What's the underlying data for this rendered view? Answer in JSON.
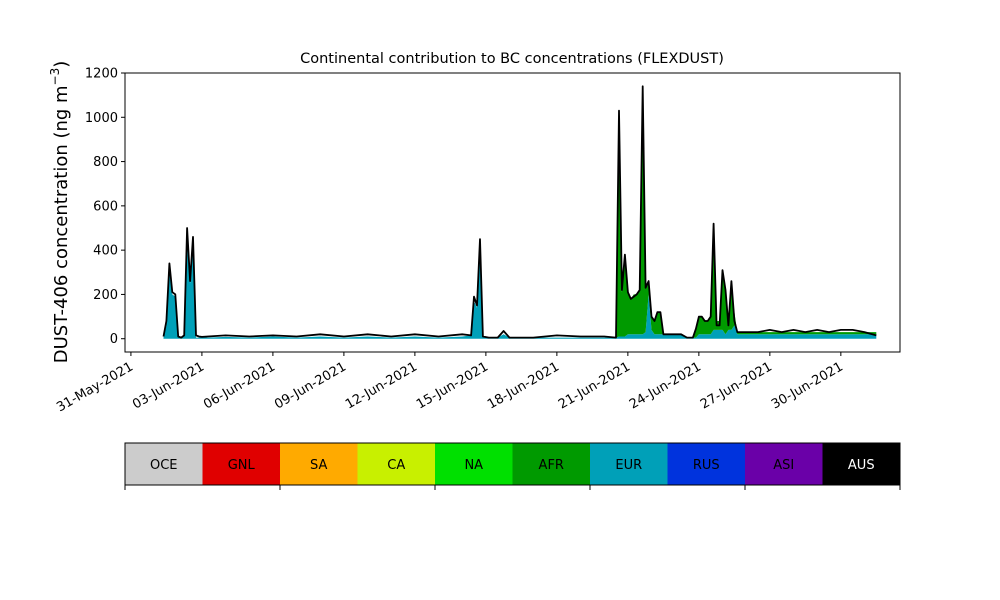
{
  "chart_data": {
    "type": "area",
    "title": "Continental contribution to BC concentrations (FLEXDUST)",
    "ylabel_main": "DUST-406 concentration (ng m",
    "ylabel_exp": "−3",
    "ylabel_close": ")",
    "xlabel": "",
    "ylim": [
      -60,
      1200
    ],
    "yticks": [
      0,
      200,
      400,
      600,
      800,
      1000,
      1200
    ],
    "xlim": [
      "2021-05-30T18:00",
      "2021-07-02T12:00"
    ],
    "xticks": [
      "31-May-2021",
      "03-Jun-2021",
      "06-Jun-2021",
      "09-Jun-2021",
      "12-Jun-2021",
      "15-Jun-2021",
      "18-Jun-2021",
      "21-Jun-2021",
      "24-Jun-2021",
      "27-Jun-2021",
      "30-Jun-2021"
    ],
    "stack_order": [
      "EUR",
      "AFR",
      "NA",
      "CA",
      "RUS",
      "ASI"
    ],
    "total_line_color": "#000000",
    "x": [
      "2021-06-01T09:00",
      "2021-06-01T12:00",
      "2021-06-01T15:00",
      "2021-06-01T18:00",
      "2021-06-01T21:00",
      "2021-06-02T00:00",
      "2021-06-02T03:00",
      "2021-06-02T06:00",
      "2021-06-02T09:00",
      "2021-06-02T12:00",
      "2021-06-02T15:00",
      "2021-06-02T18:00",
      "2021-06-02T21:00",
      "2021-06-03T00:00",
      "2021-06-03T06:00",
      "2021-06-04T00:00",
      "2021-06-05T00:00",
      "2021-06-06T00:00",
      "2021-06-07T00:00",
      "2021-06-08T00:00",
      "2021-06-09T00:00",
      "2021-06-10T00:00",
      "2021-06-11T00:00",
      "2021-06-12T00:00",
      "2021-06-13T00:00",
      "2021-06-14T00:00",
      "2021-06-14T09:00",
      "2021-06-14T12:00",
      "2021-06-14T15:00",
      "2021-06-14T18:00",
      "2021-06-14T21:00",
      "2021-06-15T03:00",
      "2021-06-15T12:00",
      "2021-06-15T18:00",
      "2021-06-16T00:00",
      "2021-06-16T12:00",
      "2021-06-17T00:00",
      "2021-06-18T00:00",
      "2021-06-19T00:00",
      "2021-06-20T00:00",
      "2021-06-20T12:00",
      "2021-06-20T15:00",
      "2021-06-20T18:00",
      "2021-06-20T21:00",
      "2021-06-21T00:00",
      "2021-06-21T03:00",
      "2021-06-21T06:00",
      "2021-06-21T09:00",
      "2021-06-21T12:00",
      "2021-06-21T15:00",
      "2021-06-21T18:00",
      "2021-06-21T21:00",
      "2021-06-22T00:00",
      "2021-06-22T03:00",
      "2021-06-22T06:00",
      "2021-06-22T09:00",
      "2021-06-22T12:00",
      "2021-06-22T15:00",
      "2021-06-22T18:00",
      "2021-06-22T21:00",
      "2021-06-23T06:00",
      "2021-06-23T12:00",
      "2021-06-23T18:00",
      "2021-06-23T21:00",
      "2021-06-24T00:00",
      "2021-06-24T03:00",
      "2021-06-24T06:00",
      "2021-06-24T09:00",
      "2021-06-24T12:00",
      "2021-06-24T15:00",
      "2021-06-24T18:00",
      "2021-06-24T21:00",
      "2021-06-25T00:00",
      "2021-06-25T03:00",
      "2021-06-25T06:00",
      "2021-06-25T09:00",
      "2021-06-25T12:00",
      "2021-06-25T15:00",
      "2021-06-25T18:00",
      "2021-06-25T21:00",
      "2021-06-26T00:00",
      "2021-06-26T03:00",
      "2021-06-26T06:00",
      "2021-06-26T12:00",
      "2021-06-27T00:00",
      "2021-06-27T12:00",
      "2021-06-28T00:00",
      "2021-06-28T12:00",
      "2021-06-29T00:00",
      "2021-06-29T12:00",
      "2021-06-30T00:00",
      "2021-06-30T12:00",
      "2021-07-01T00:00",
      "2021-07-01T12:00"
    ],
    "series": [
      {
        "name": "EUR",
        "color": "#00a0b8",
        "values": [
          5,
          60,
          300,
          200,
          190,
          10,
          5,
          15,
          430,
          250,
          440,
          5,
          5,
          8,
          5,
          8,
          5,
          10,
          5,
          10,
          5,
          10,
          5,
          10,
          5,
          10,
          15,
          170,
          140,
          420,
          10,
          5,
          5,
          20,
          5,
          5,
          5,
          5,
          5,
          5,
          5,
          10,
          10,
          10,
          20,
          20,
          20,
          20,
          20,
          20,
          30,
          200,
          40,
          20,
          20,
          20,
          20,
          20,
          20,
          20,
          20,
          5,
          5,
          5,
          20,
          20,
          20,
          20,
          20,
          40,
          40,
          40,
          40,
          20,
          40,
          40,
          60,
          20,
          20,
          20,
          20,
          20,
          20,
          20,
          20,
          20,
          20,
          20,
          20,
          20,
          20,
          20,
          20,
          20
        ]
      },
      {
        "name": "AFR",
        "color": "#009a00",
        "values": [
          0,
          0,
          0,
          0,
          0,
          0,
          0,
          0,
          0,
          0,
          0,
          0,
          0,
          0,
          0,
          0,
          0,
          0,
          0,
          0,
          0,
          0,
          0,
          0,
          0,
          0,
          0,
          0,
          0,
          0,
          0,
          0,
          0,
          0,
          0,
          0,
          0,
          0,
          0,
          0,
          0,
          1000,
          200,
          360,
          200,
          160,
          180,
          180,
          200,
          1080,
          200,
          60,
          60,
          60,
          100,
          100,
          0,
          0,
          0,
          0,
          0,
          0,
          0,
          30,
          80,
          80,
          60,
          60,
          80,
          440,
          40,
          40,
          260,
          200,
          40,
          200,
          60,
          10,
          10,
          10,
          10,
          10,
          10,
          10,
          10,
          10,
          10,
          10,
          10,
          10,
          10,
          10,
          10,
          10
        ]
      },
      {
        "name": "NA",
        "color": "#00e000",
        "values": [
          0,
          0,
          0,
          0,
          0,
          0,
          0,
          0,
          0,
          0,
          0,
          0,
          0,
          0,
          0,
          0,
          0,
          0,
          0,
          0,
          0,
          0,
          0,
          0,
          0,
          0,
          0,
          0,
          0,
          0,
          0,
          0,
          0,
          0,
          0,
          0,
          0,
          0,
          0,
          0,
          0,
          0,
          0,
          0,
          0,
          0,
          0,
          0,
          0,
          0,
          0,
          0,
          0,
          0,
          0,
          0,
          0,
          0,
          0,
          0,
          0,
          0,
          0,
          0,
          0,
          0,
          0,
          0,
          0,
          0,
          0,
          0,
          0,
          0,
          0,
          0,
          0,
          0,
          0,
          0,
          0,
          0,
          0,
          0,
          0,
          0,
          0,
          0,
          0,
          0,
          0,
          0,
          0,
          0
        ]
      },
      {
        "name": "CA",
        "color": "#c8f000",
        "values": [
          0,
          0,
          0,
          0,
          0,
          0,
          0,
          0,
          0,
          0,
          0,
          0,
          0,
          0,
          0,
          0,
          0,
          0,
          0,
          0,
          0,
          0,
          0,
          0,
          0,
          0,
          0,
          0,
          0,
          0,
          0,
          0,
          0,
          0,
          0,
          0,
          0,
          0,
          0,
          0,
          0,
          0,
          0,
          0,
          0,
          0,
          0,
          0,
          0,
          0,
          0,
          0,
          0,
          0,
          0,
          0,
          0,
          0,
          0,
          0,
          0,
          0,
          0,
          0,
          0,
          0,
          0,
          0,
          0,
          0,
          0,
          0,
          0,
          0,
          0,
          0,
          0,
          0,
          0,
          0,
          0,
          0,
          0,
          0,
          0,
          0,
          0,
          0,
          0,
          0,
          0,
          0,
          0,
          0
        ]
      },
      {
        "name": "RUS",
        "color": "#0033dd",
        "values": [
          0,
          0,
          0,
          0,
          0,
          0,
          0,
          0,
          0,
          0,
          0,
          0,
          0,
          0,
          0,
          0,
          0,
          0,
          0,
          0,
          0,
          0,
          0,
          0,
          0,
          0,
          0,
          0,
          0,
          0,
          0,
          0,
          0,
          0,
          0,
          0,
          0,
          0,
          0,
          0,
          0,
          0,
          0,
          0,
          0,
          0,
          0,
          0,
          0,
          0,
          0,
          0,
          0,
          0,
          0,
          0,
          0,
          0,
          0,
          0,
          0,
          0,
          0,
          0,
          0,
          0,
          0,
          0,
          0,
          0,
          0,
          0,
          0,
          0,
          0,
          0,
          0,
          0,
          0,
          0,
          0,
          0,
          0,
          0,
          0,
          0,
          0,
          0,
          0,
          0,
          0,
          0,
          0,
          0
        ]
      },
      {
        "name": "ASI",
        "color": "#6a00a8",
        "values": [
          0,
          0,
          0,
          0,
          0,
          0,
          0,
          0,
          0,
          0,
          0,
          0,
          0,
          0,
          0,
          0,
          0,
          0,
          0,
          0,
          0,
          0,
          0,
          0,
          0,
          0,
          0,
          0,
          0,
          0,
          0,
          0,
          0,
          0,
          0,
          0,
          0,
          0,
          0,
          0,
          0,
          0,
          0,
          0,
          0,
          0,
          0,
          0,
          0,
          0,
          0,
          0,
          0,
          0,
          0,
          0,
          0,
          0,
          0,
          0,
          0,
          0,
          0,
          0,
          0,
          0,
          0,
          0,
          0,
          0,
          0,
          0,
          0,
          0,
          0,
          0,
          0,
          0,
          0,
          0,
          0,
          0,
          0,
          0,
          0,
          0,
          0,
          0,
          0,
          0,
          0,
          0,
          0,
          0
        ]
      }
    ],
    "total": [
      10,
      80,
      340,
      210,
      200,
      10,
      5,
      15,
      500,
      260,
      460,
      15,
      10,
      8,
      10,
      15,
      10,
      15,
      10,
      20,
      10,
      20,
      10,
      20,
      10,
      20,
      15,
      190,
      150,
      450,
      10,
      5,
      5,
      35,
      5,
      5,
      5,
      15,
      10,
      10,
      5,
      1030,
      220,
      380,
      210,
      180,
      190,
      200,
      220,
      1140,
      230,
      260,
      100,
      80,
      120,
      120,
      20,
      20,
      20,
      20,
      20,
      5,
      5,
      45,
      100,
      100,
      80,
      80,
      100,
      520,
      60,
      60,
      310,
      220,
      60,
      260,
      80,
      30,
      30,
      30,
      30,
      30,
      30,
      30,
      40,
      30,
      40,
      30,
      40,
      30,
      40,
      40,
      30,
      15
    ],
    "colorbar": {
      "labels": [
        "OCE",
        "GNL",
        "SA",
        "CA",
        "NA",
        "AFR",
        "EUR",
        "RUS",
        "ASI",
        "AUS"
      ],
      "colors": [
        "#cccccc",
        "#e00000",
        "#ffaa00",
        "#c8f000",
        "#00e000",
        "#009a00",
        "#00a0b8",
        "#0033dd",
        "#6a00a8",
        "#000000"
      ],
      "text_colors": [
        "#000000",
        "#000000",
        "#000000",
        "#000000",
        "#000000",
        "#000000",
        "#000000",
        "#000000",
        "#000000",
        "#ffffff"
      ]
    }
  }
}
